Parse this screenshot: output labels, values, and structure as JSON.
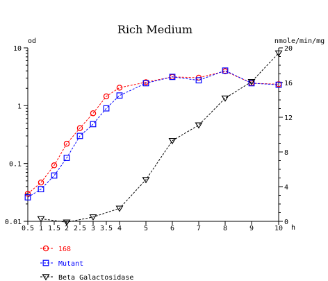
{
  "chart_data": {
    "type": "line",
    "title": "Rich Medium",
    "x_unit": "h",
    "y_left_unit": "od",
    "y_right_unit": "nmole/min/mg",
    "x_range": [
      0.5,
      10
    ],
    "x_ticks": [
      0.5,
      1,
      1.5,
      2,
      2.5,
      3,
      3.5,
      4,
      5,
      6,
      7,
      8,
      9,
      10
    ],
    "x_tick_labels": [
      "0.5",
      "1",
      "1.5",
      "2",
      "2.5",
      "3",
      "3.5",
      "4",
      "5",
      "6",
      "7",
      "8",
      "9",
      "10"
    ],
    "y_left_scale": "log",
    "y_left_range": [
      0.01,
      10
    ],
    "y_left_ticks": [
      0.01,
      0.1,
      1,
      10
    ],
    "y_left_tick_labels": [
      "0.01",
      "0.1",
      "1",
      "10"
    ],
    "y_right_scale": "linear",
    "y_right_range": [
      0,
      20
    ],
    "y_right_ticks": [
      0,
      4,
      8,
      12,
      16,
      20
    ],
    "y_right_tick_labels": [
      "0",
      "4",
      "8",
      "12",
      "16",
      "20"
    ],
    "grid": false,
    "legend_position": "bottom-left",
    "series": [
      {
        "name": "168",
        "axis": "left",
        "marker": "circle",
        "color": "#ff0000",
        "x": [
          0.5,
          1,
          1.5,
          2,
          2.5,
          3,
          3.5,
          4,
          5,
          6,
          7,
          8,
          9,
          10
        ],
        "y": [
          0.03,
          0.047,
          0.093,
          0.22,
          0.41,
          0.74,
          1.45,
          2.05,
          2.55,
          3.15,
          3.05,
          3.95,
          2.45,
          2.35
        ]
      },
      {
        "name": "Mutant",
        "axis": "left",
        "marker": "square",
        "color": "#0000ff",
        "x": [
          0.5,
          1,
          1.5,
          2,
          2.5,
          3,
          3.5,
          4,
          5,
          6,
          7,
          8,
          9,
          10
        ],
        "y": [
          0.026,
          0.036,
          0.062,
          0.125,
          0.3,
          0.48,
          0.9,
          1.5,
          2.45,
          3.15,
          2.75,
          4.05,
          2.45,
          2.3
        ]
      },
      {
        "name": "Beta Galactosidase",
        "axis": "right",
        "marker": "triangle-down",
        "color": "#000000",
        "x": [
          1,
          2,
          3,
          4,
          5,
          6,
          7,
          8,
          9,
          10
        ],
        "y": [
          0.3,
          -0.1,
          0.5,
          1.5,
          4.8,
          9.3,
          11.1,
          14.2,
          16.1,
          19.4
        ]
      }
    ]
  }
}
